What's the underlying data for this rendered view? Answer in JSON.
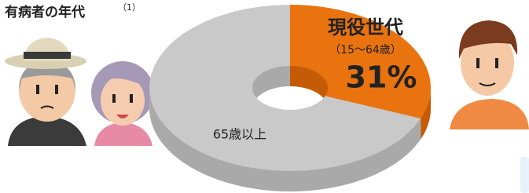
{
  "chart_data": {
    "type": "donut3d",
    "title": "有病者の年代",
    "title_note": "（1）",
    "categories": [
      "現役世代",
      "65歳以上"
    ],
    "category_notes": [
      "（15～64歳）",
      null
    ],
    "values": [
      31,
      69
    ],
    "value_labels": [
      "31%",
      null
    ],
    "colors": [
      "#e8730f",
      "#c9c9c9"
    ],
    "side_colors": [
      "#c55b06",
      "#a9a9a9"
    ]
  }
}
